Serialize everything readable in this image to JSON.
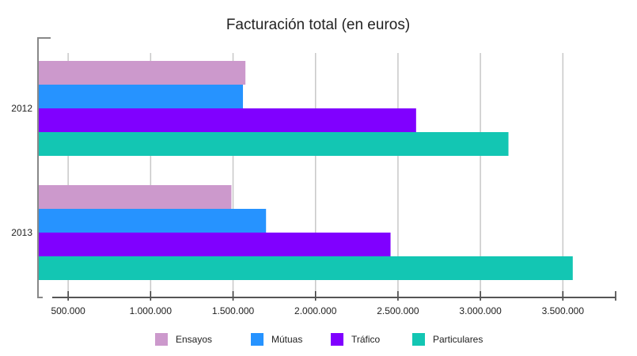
{
  "chart_data": {
    "type": "bar",
    "orientation": "horizontal",
    "title": "Facturación total (en euros)",
    "xlabel": "",
    "ylabel": "",
    "categories": [
      "2012",
      "2013"
    ],
    "series": [
      {
        "name": "Ensayos",
        "color": "#cc99cc",
        "values": [
          1575000,
          1490000
        ]
      },
      {
        "name": "Mútuas",
        "color": "#2693ff",
        "values": [
          1560000,
          1700000
        ]
      },
      {
        "name": "Tráfico",
        "color": "#8000ff",
        "values": [
          2610000,
          2455000
        ]
      },
      {
        "name": "Particulares",
        "color": "#13c6b3",
        "values": [
          3170000,
          3560000
        ]
      }
    ],
    "xlim": [
      317000,
      3820000
    ],
    "xticks": [
      500000,
      1000000,
      1500000,
      2000000,
      2500000,
      3000000,
      3500000
    ],
    "xtick_labels": [
      "500.000",
      "1.000.000",
      "1.500.000",
      "2.000.000",
      "2.500.000",
      "3.000.000",
      "3.500.000"
    ],
    "grid": true,
    "legend_position": "bottom"
  }
}
